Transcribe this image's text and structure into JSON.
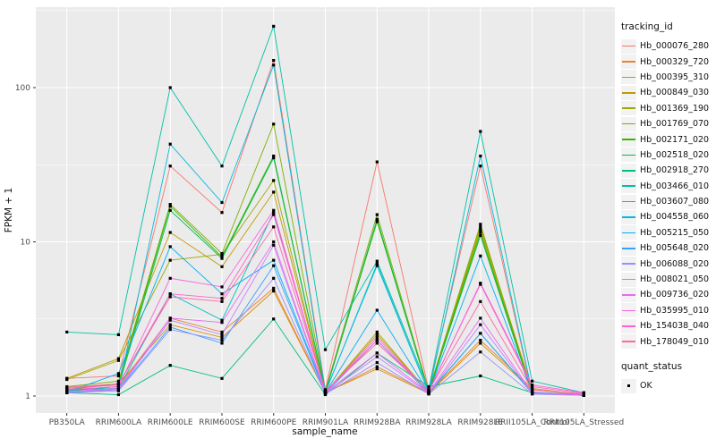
{
  "chart_data": {
    "type": "line",
    "xlabel": "sample_name",
    "ylabel": "FPKM + 1",
    "y_scale": "log10",
    "y_breaks": [
      1,
      10,
      100
    ],
    "y_minor_breaks": [
      3.162,
      31.62,
      316.2
    ],
    "ylim": [
      1,
      260
    ],
    "grid": true,
    "legend_position": "right",
    "legend_title": "tracking_id",
    "panel_background": "#EBEBEB",
    "grid_color": "#FFFFFF",
    "point_shape": "filled-square",
    "point_color": "#000000",
    "categories": [
      "PB350LA",
      "RRIM600LA",
      "RRIM600LE",
      "RRIM600SE",
      "RRIM600PE",
      "RRIM901LA",
      "RRIM928BA",
      "RRIM928LA",
      "RRIM928LE",
      "RRII105LA_Control",
      "RRII105LA_Stressed"
    ],
    "series": [
      {
        "name": "Hb_000076_280",
        "color": "#F8766D",
        "values": [
          1.3,
          1.35,
          31,
          15.5,
          150,
          1.1,
          33,
          1.1,
          31,
          1.05,
          1.02
        ]
      },
      {
        "name": "Hb_000329_720",
        "color": "#EA8331",
        "values": [
          1.1,
          1.15,
          3.2,
          2.6,
          5.0,
          1.05,
          1.55,
          1.05,
          2.3,
          1.12,
          1.02
        ]
      },
      {
        "name": "Hb_000395_310",
        "color": "#D89000",
        "values": [
          1.12,
          1.2,
          2.9,
          2.4,
          4.8,
          1.05,
          1.5,
          1.04,
          2.2,
          1.1,
          1.02
        ]
      },
      {
        "name": "Hb_000849_030",
        "color": "#C09B00",
        "values": [
          1.3,
          1.75,
          11.5,
          6.9,
          21,
          1.06,
          2.5,
          1.06,
          12.5,
          1.1,
          1.03
        ]
      },
      {
        "name": "Hb_001369_190",
        "color": "#A3A500",
        "values": [
          1.28,
          1.7,
          7.6,
          8.3,
          25,
          1.05,
          2.6,
          1.05,
          12.0,
          1.05,
          1.02
        ]
      },
      {
        "name": "Hb_001769_070",
        "color": "#7CAE00",
        "values": [
          1.15,
          1.25,
          17.5,
          8.4,
          58,
          1.08,
          15.0,
          1.08,
          13.0,
          1.05,
          1.02
        ]
      },
      {
        "name": "Hb_002171_020",
        "color": "#39B600",
        "values": [
          1.1,
          1.2,
          17.0,
          8.0,
          36,
          1.06,
          13.5,
          1.06,
          11.5,
          1.04,
          1.02
        ]
      },
      {
        "name": "Hb_002518_020",
        "color": "#00BB4E",
        "values": [
          1.08,
          1.15,
          16.0,
          7.8,
          35,
          1.05,
          14.0,
          1.05,
          11.0,
          1.04,
          1.01
        ]
      },
      {
        "name": "Hb_002918_270",
        "color": "#00BF7D",
        "values": [
          1.05,
          1.02,
          1.58,
          1.3,
          3.16,
          1.02,
          1.9,
          1.15,
          1.35,
          1.05,
          1.01
        ]
      },
      {
        "name": "Hb_003466_010",
        "color": "#00C1A3",
        "values": [
          2.6,
          2.5,
          100,
          31,
          250,
          2.0,
          7.5,
          1.1,
          52,
          1.25,
          1.05
        ]
      },
      {
        "name": "Hb_003607_080",
        "color": "#00BFC4",
        "values": [
          1.1,
          1.12,
          4.6,
          3.1,
          15.5,
          1.05,
          7.2,
          1.05,
          2.55,
          1.05,
          1.02
        ]
      },
      {
        "name": "Hb_004558_060",
        "color": "#00BAE0",
        "values": [
          1.08,
          1.1,
          43,
          18,
          140,
          1.06,
          7.0,
          1.05,
          36,
          1.06,
          1.02
        ]
      },
      {
        "name": "Hb_005215_050",
        "color": "#00B0F6",
        "values": [
          1.06,
          1.4,
          9.3,
          4.6,
          7.6,
          1.05,
          3.6,
          1.05,
          8.1,
          1.05,
          1.02
        ]
      },
      {
        "name": "Hb_005648_020",
        "color": "#35A2FF",
        "values": [
          1.05,
          1.1,
          2.8,
          2.2,
          7.0,
          1.04,
          2.3,
          1.04,
          2.55,
          1.04,
          1.01
        ]
      },
      {
        "name": "Hb_006088_020",
        "color": "#9590FF",
        "values": [
          1.05,
          1.08,
          2.7,
          2.3,
          5.8,
          1.03,
          1.65,
          1.03,
          1.93,
          1.03,
          1.01
        ]
      },
      {
        "name": "Hb_008021_050",
        "color": "#C77CFF",
        "values": [
          1.06,
          1.1,
          3.1,
          2.5,
          9.5,
          1.04,
          1.8,
          1.04,
          2.9,
          1.04,
          1.01
        ]
      },
      {
        "name": "Hb_009736_020",
        "color": "#E76BF3",
        "values": [
          1.07,
          1.12,
          3.2,
          3.0,
          10.0,
          1.05,
          1.9,
          1.05,
          3.2,
          1.05,
          1.02
        ]
      },
      {
        "name": "Hb_035995_010",
        "color": "#FA62DB",
        "values": [
          1.1,
          1.15,
          5.8,
          5.1,
          16.0,
          1.06,
          2.4,
          1.06,
          5.4,
          1.18,
          1.05
        ]
      },
      {
        "name": "Hb_154038_040",
        "color": "#FF61CC",
        "values": [
          1.12,
          1.18,
          4.6,
          4.3,
          15.0,
          1.07,
          2.3,
          1.07,
          5.3,
          1.15,
          1.04
        ]
      },
      {
        "name": "Hb_178049_010",
        "color": "#FF67A4",
        "values": [
          1.14,
          1.2,
          4.4,
          4.1,
          12.5,
          1.08,
          2.2,
          1.08,
          4.1,
          1.1,
          1.03
        ]
      }
    ],
    "quant_legend": {
      "title": "quant_status",
      "items": [
        {
          "label": "OK",
          "shape": "black-square"
        }
      ]
    }
  }
}
